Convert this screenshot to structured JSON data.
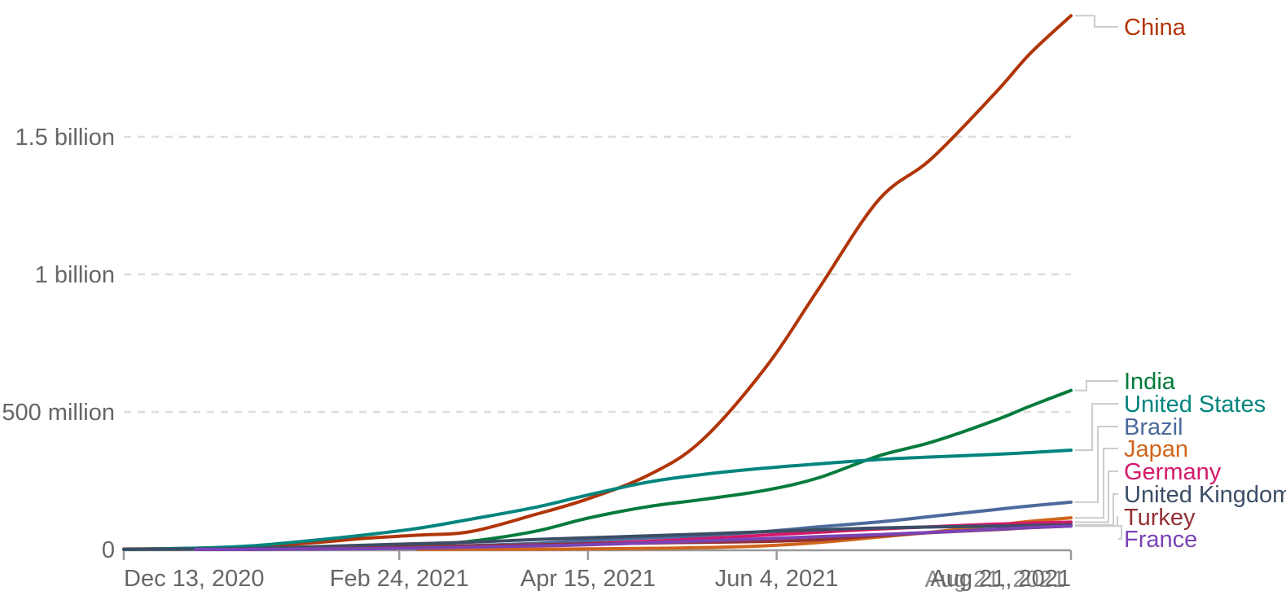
{
  "chart": {
    "background_color": "#ffffff",
    "gridline_color": "#dddddd",
    "axis_line_color": "#999999",
    "axis_text_color": "#666666",
    "connector_color": "#cccccc",
    "y_axis": {
      "ticks": [
        {
          "value": 0,
          "label": "0"
        },
        {
          "value": 500,
          "label": "500 million"
        },
        {
          "value": 1000,
          "label": "1 billion"
        },
        {
          "value": 1500,
          "label": "1.5 billion"
        }
      ]
    },
    "x_axis": {
      "start": "2020-12-13",
      "end": "2021-08-21",
      "ticks": [
        {
          "date": "2020-12-13",
          "label": "Dec 13, 2020",
          "align": "start"
        },
        {
          "date": "2021-02-24",
          "label": "Feb 24, 2021",
          "align": "middle"
        },
        {
          "date": "2021-04-15",
          "label": "Apr 15, 2021",
          "align": "middle"
        },
        {
          "date": "2021-06-04",
          "label": "Jun 4, 2021",
          "align": "middle"
        },
        {
          "date": "2021-08-21",
          "label": "Aug 21, 2021",
          "align": "end"
        }
      ],
      "ghost_last_label": "Aug 21, 2021"
    }
  },
  "chart_data": {
    "type": "line",
    "unit": "doses (millions)",
    "title": "",
    "xlabel": "",
    "ylabel": "",
    "ylim": [
      0,
      1940
    ],
    "legend_position": "right-entity-labels",
    "grid": "dashed-horizontal",
    "x": [
      "2020-12-13",
      "2021-01-01",
      "2021-01-15",
      "2021-02-01",
      "2021-02-15",
      "2021-03-01",
      "2021-03-15",
      "2021-04-01",
      "2021-04-15",
      "2021-05-01",
      "2021-05-15",
      "2021-06-01",
      "2021-06-15",
      "2021-07-01",
      "2021-07-15",
      "2021-08-01",
      "2021-08-10",
      "2021-08-21"
    ],
    "series": [
      {
        "name": "China",
        "color": "#b13507",
        "values": [
          1.5,
          4.5,
          10,
          24,
          40.5,
          52,
          65,
          127,
          184,
          270,
          394,
          660,
          945,
          1270,
          1420,
          1660,
          1800,
          1940
        ]
      },
      {
        "name": "India",
        "color": "#047b3c",
        "values": [
          null,
          null,
          0.2,
          3.8,
          8.3,
          14.3,
          30,
          65.9,
          114,
          156,
          181,
          215,
          260,
          340,
          390,
          470,
          520,
          578
        ]
      },
      {
        "name": "United States",
        "color": "#00847e",
        "values": [
          0.1,
          4.6,
          12.3,
          32.8,
          52.9,
          76.9,
          110,
          153,
          198,
          245,
          272,
          296,
          311,
          327,
          336,
          346,
          352,
          361
        ]
      },
      {
        "name": "Brazil",
        "color": "#4c6a9c",
        "values": [
          null,
          null,
          null,
          2,
          5.5,
          9,
          14,
          22,
          32,
          42,
          50,
          65,
          82,
          100,
          120,
          145,
          158,
          172
        ]
      },
      {
        "name": "Japan",
        "color": "#d0651c",
        "values": [
          null,
          null,
          null,
          null,
          null,
          0.1,
          0.7,
          1.1,
          2,
          4,
          6.5,
          13.3,
          25,
          45,
          63,
          88,
          102,
          115
        ]
      },
      {
        "name": "Germany",
        "color": "#d4196a",
        "values": [
          null,
          0.3,
          1,
          2.8,
          4.3,
          6.2,
          9.7,
          15,
          20.6,
          29.6,
          38.8,
          52,
          62.5,
          74.3,
          82.6,
          92,
          95.6,
          99.3
        ]
      },
      {
        "name": "United Kingdom",
        "color": "#3c4e66",
        "values": [
          0.6,
          1.4,
          3.9,
          9.8,
          15.6,
          20.9,
          26.5,
          36.2,
          42.5,
          49.4,
          56,
          64.8,
          71.3,
          78.2,
          81.6,
          84.9,
          87.2,
          89.3
        ]
      },
      {
        "name": "Turkey",
        "color": "#932f34",
        "values": [
          null,
          null,
          0.7,
          2.4,
          5.2,
          8.7,
          12.9,
          16.7,
          20,
          23.5,
          25.8,
          29.3,
          35.6,
          50,
          61.4,
          72.3,
          79,
          85.5
        ]
      },
      {
        "name": "France",
        "color": "#7a43b5",
        "values": [
          null,
          0,
          0.4,
          1.9,
          2.9,
          5.1,
          8.5,
          12.9,
          16.9,
          24.3,
          31,
          39.4,
          46.8,
          54.1,
          62.2,
          73.7,
          79.5,
          84.9
        ]
      }
    ]
  }
}
